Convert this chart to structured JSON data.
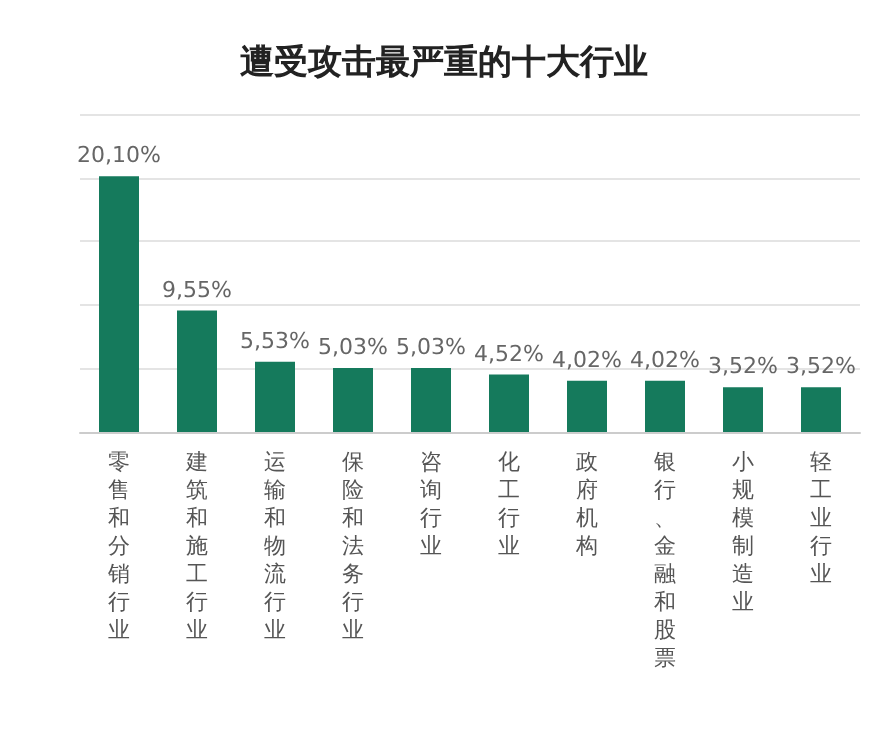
{
  "chart_data": {
    "type": "bar",
    "title": "遭受攻击最严重的十大行业",
    "categories": [
      "零售和分销行业",
      "建筑和施工行业",
      "运输和物流行业",
      "保险和法务行业",
      "咨询行业",
      "化工行业",
      "政府机构",
      "银行、金融和股票",
      "小规模制造业",
      "轻工业行业"
    ],
    "values": [
      20.1,
      9.55,
      5.53,
      5.03,
      5.03,
      4.52,
      4.02,
      4.02,
      3.52,
      3.52
    ],
    "value_labels": [
      "20,10%",
      "9,55%",
      "5,53%",
      "5,03%",
      "5,03%",
      "4,52%",
      "4,02%",
      "4,02%",
      "3,52%",
      "3,52%"
    ],
    "color": "#157a5c",
    "ylim": [
      0,
      25
    ],
    "yticks": [
      {
        "value": 0,
        "label": null
      },
      {
        "value": 5,
        "label": null
      },
      {
        "value": 10,
        "label": null
      },
      {
        "value": 15,
        "label": null
      },
      {
        "value": 20,
        "label": null
      },
      {
        "value": 25,
        "label": null
      }
    ],
    "grid": "y",
    "tick_labels": "x"
  }
}
